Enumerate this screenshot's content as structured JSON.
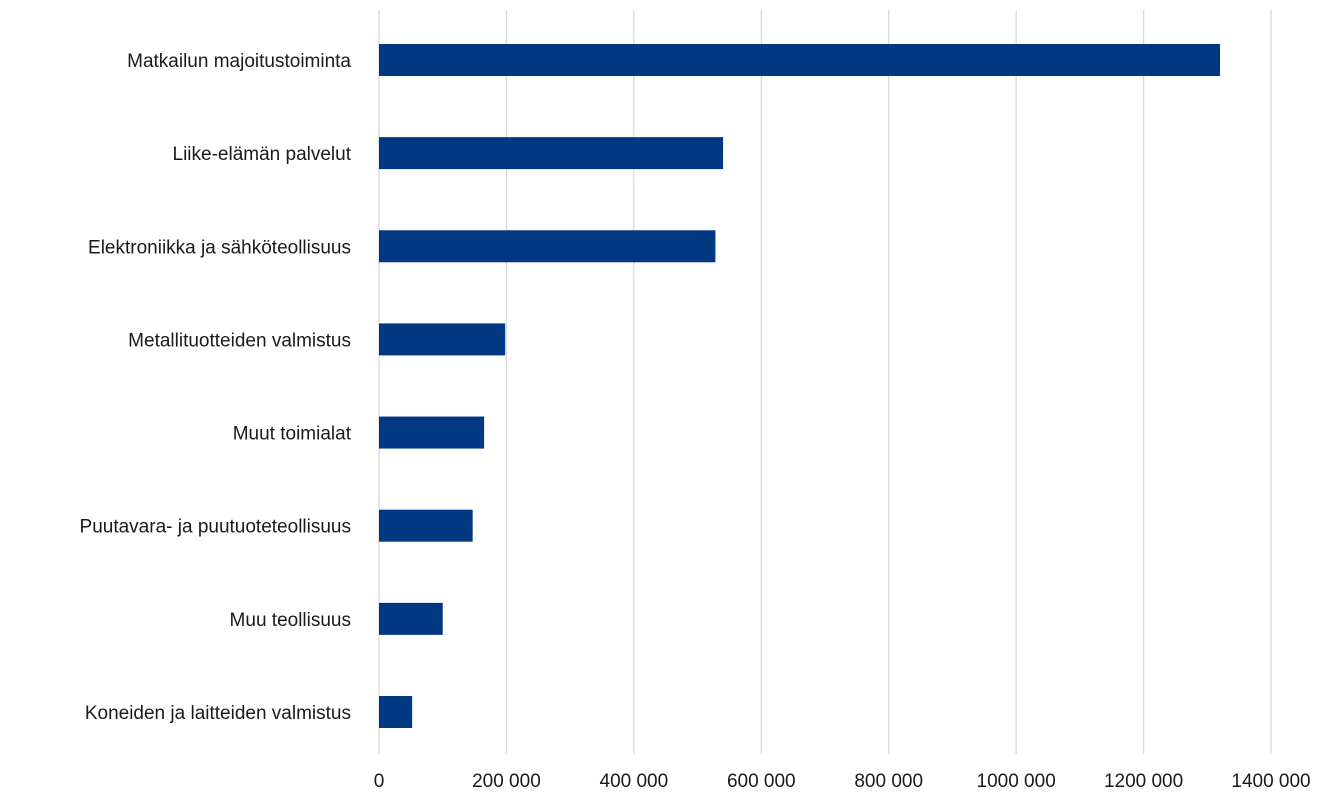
{
  "chart_data": {
    "type": "bar",
    "orientation": "horizontal",
    "categories": [
      "Matkailun majoitustoiminta",
      "Liike-elämän palvelut",
      "Elektroniikka ja sähköteollisuus",
      "Metallituotteiden valmistus",
      "Muut toimialat",
      "Puutavara- ja puutuoteteollisuus",
      "Muu teollisuus",
      "Koneiden ja laitteiden valmistus"
    ],
    "values": [
      1320000,
      540000,
      528000,
      198000,
      165000,
      147000,
      100000,
      52000
    ],
    "xlim": [
      0,
      1400000
    ],
    "x_ticks": [
      0,
      200000,
      400000,
      600000,
      800000,
      1000000,
      1200000,
      1400000
    ],
    "x_tick_labels": [
      "0",
      "200 000",
      "400 000",
      "600 000",
      "800 000",
      "1000 000",
      "1200 000",
      "1400 000"
    ],
    "grid": "vertical",
    "bar_color": "#003882",
    "grid_color": "#d9d9d9",
    "title": "",
    "xlabel": "",
    "ylabel": ""
  }
}
